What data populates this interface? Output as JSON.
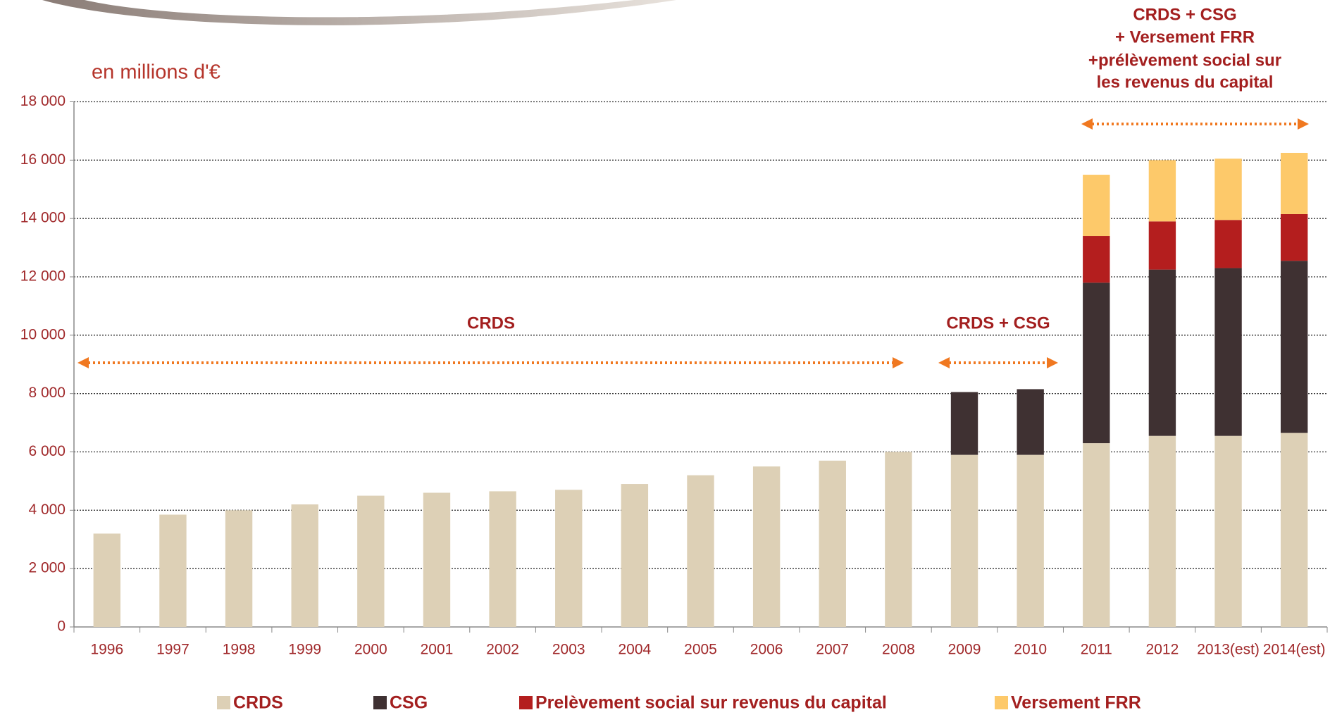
{
  "chart_data": {
    "type": "stacked-bar",
    "subtitle": "en millions d'€",
    "annotations": [
      "CRDS",
      "CRDS + CSG",
      "CRDS + CSG",
      "+ Versement FRR",
      "+prélèvement social sur",
      "les revenus du capital"
    ],
    "categories": [
      "1996",
      "1997",
      "1998",
      "1999",
      "2000",
      "2001",
      "2002",
      "2003",
      "2004",
      "2005",
      "2006",
      "2007",
      "2008",
      "2009",
      "2010",
      "2011",
      "2012",
      "2013(est)",
      "2014(est)"
    ],
    "series": [
      {
        "name": "CRDS",
        "color": "#ddd0b6",
        "values": [
          3200,
          3850,
          4000,
          4200,
          4500,
          4600,
          4650,
          4700,
          4900,
          5200,
          5500,
          5700,
          6000,
          5900,
          5900,
          6300,
          6550,
          6550,
          6650
        ]
      },
      {
        "name": "CSG",
        "color": "#3f3132",
        "values": [
          null,
          null,
          null,
          null,
          null,
          null,
          null,
          null,
          null,
          null,
          null,
          null,
          null,
          2150,
          2250,
          5500,
          5700,
          5750,
          5900
        ]
      },
      {
        "name": "Prelèvement social sur revenus du capital",
        "color": "#b41e1e",
        "values": [
          null,
          null,
          null,
          null,
          null,
          null,
          null,
          null,
          null,
          null,
          null,
          null,
          null,
          null,
          null,
          1600,
          1650,
          1650,
          1600
        ]
      },
      {
        "name": "Versement FRR",
        "color": "#fdc96a",
        "values": [
          null,
          null,
          null,
          null,
          null,
          null,
          null,
          null,
          null,
          null,
          null,
          null,
          null,
          null,
          null,
          2100,
          2100,
          2100,
          2100
        ]
      }
    ],
    "ylim": [
      0,
      18000
    ],
    "yticks": [
      0,
      {
        "value": 2000,
        "label": "2 000"
      },
      {
        "value": 4000,
        "label": "4 000"
      },
      {
        "value": 6000,
        "label": "6 000"
      },
      {
        "value": 8000,
        "label": "8 000"
      },
      {
        "value": 10000,
        "label": "10 000"
      },
      {
        "value": 12000,
        "label": "12 000"
      },
      {
        "value": 14000,
        "label": "14 000"
      },
      {
        "value": 16000,
        "label": "16 000"
      },
      {
        "value": 18000,
        "label": "18 000"
      }
    ],
    "grid": true
  }
}
